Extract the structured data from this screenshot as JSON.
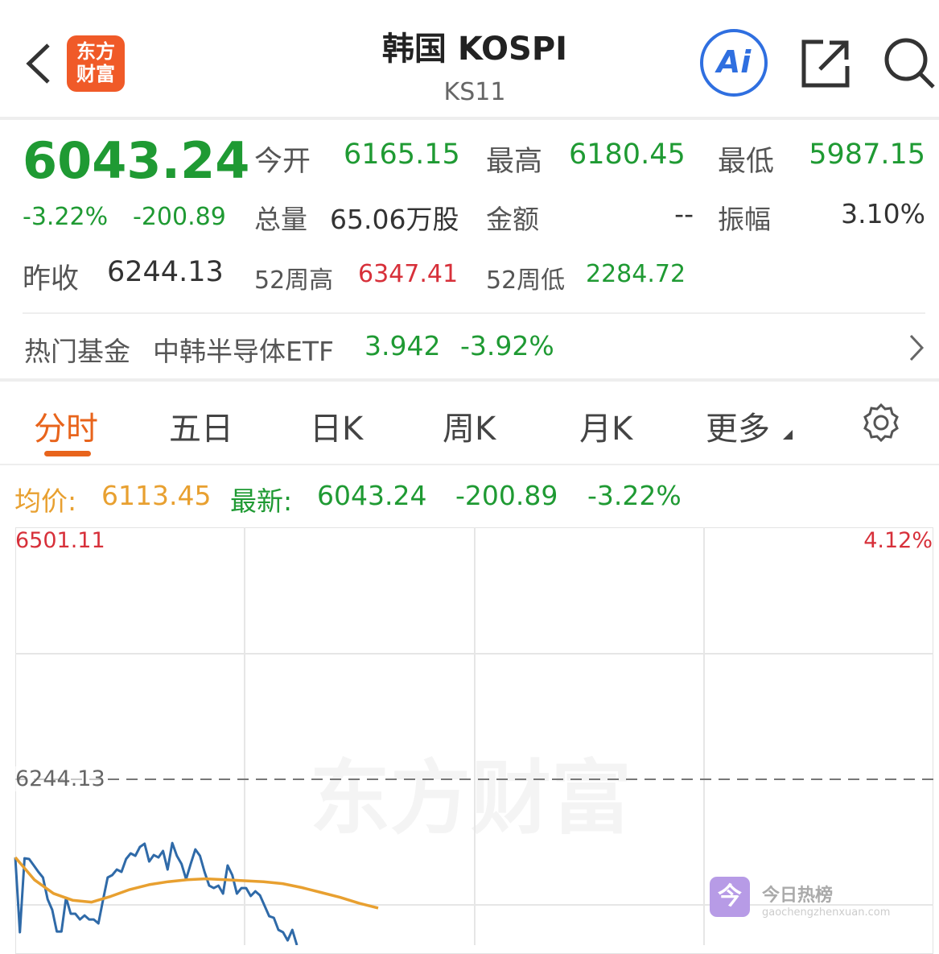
{
  "header": {
    "title": "韩国 KOSPI",
    "code": "KS11",
    "logo_text": [
      "东方",
      "财富"
    ],
    "ai_label": "Ai",
    "icons": [
      "back-chevron-icon",
      "ai-icon",
      "share-icon",
      "search-icon"
    ]
  },
  "quote": {
    "price": "6043.24",
    "change_pct": "-3.22%",
    "change": "-200.89",
    "open_label": "今开",
    "open": "6165.15",
    "high_label": "最高",
    "high": "6180.45",
    "low_label": "最低",
    "low": "5987.15",
    "volume_label": "总量",
    "volume": "65.06万股",
    "amount_label": "金额",
    "amount": "--",
    "amplitude_label": "振幅",
    "amplitude": "3.10%",
    "prev_close_label": "昨收",
    "prev_close": "6244.13",
    "w52_high_label": "52周高",
    "w52_high": "6347.41",
    "w52_low_label": "52周低",
    "w52_low": "2284.72"
  },
  "fund": {
    "label": "热门基金",
    "name": "中韩半导体ETF",
    "price": "3.942",
    "change_pct": "-3.92%"
  },
  "tabs": [
    {
      "label": "分时",
      "active": true
    },
    {
      "label": "五日"
    },
    {
      "label": "日K"
    },
    {
      "label": "周K"
    },
    {
      "label": "月K"
    },
    {
      "label": "更多"
    }
  ],
  "info": {
    "avg_label": "均价:",
    "avg": "6113.45",
    "latest_label": "最新:",
    "latest": "6043.24",
    "change": "-200.89",
    "change_pct": "-3.22%"
  },
  "colors": {
    "up": "#d7303a",
    "down": "#1f9a33",
    "avg": "#e8a030",
    "price_line": "#2f6aa8",
    "accent": "#e8641c"
  },
  "chart_data": {
    "type": "line",
    "y_top_label": "6501.11",
    "y_mid_label": "6244.13",
    "right_top_label": "4.12%",
    "ylim": [
      5987.15,
      6501.11
    ],
    "reference": 6244.13,
    "grid": true,
    "watermark": "东方财富",
    "series": [
      {
        "role": "price",
        "values": [
          6163.9,
          6087.1,
          6163.1,
          6162.3,
          6155.7,
          6149.1,
          6143.3,
          6121.0,
          6110.2,
          6087.9,
          6087.9,
          6122.6,
          6106.1,
          6106.1,
          6100.3,
          6104.4,
          6100.3,
          6100.3,
          6096.2,
          6120.1,
          6143.3,
          6145.8,
          6151.5,
          6149.1,
          6162.3,
          6168.1,
          6165.6,
          6174.7,
          6178.0,
          6159.8,
          6166.4,
          6163.9,
          6170.6,
          6151.5,
          6178.8,
          6165.6,
          6157.3,
          6141.6,
          6157.3,
          6172.2,
          6165.6,
          6149.1,
          6135.0,
          6132.5,
          6135.0,
          6126.8,
          6155.7,
          6145.8,
          6126.8,
          6132.5,
          6132.5,
          6124.3,
          6129.2,
          6125.1,
          6114.4,
          6103.6,
          6102.0,
          6089.6,
          6087.1,
          6078.8,
          6089.6,
          6073.9
        ]
      },
      {
        "role": "average",
        "values": [
          6164,
          6141,
          6127,
          6120,
          6118,
          6124,
          6131,
          6136,
          6139,
          6141,
          6142,
          6141,
          6140,
          6139,
          6137,
          6133,
          6128,
          6123,
          6117,
          6112
        ]
      }
    ]
  },
  "overlay": {
    "badge_char": "今",
    "title": "今日热榜",
    "site": "gaochengzhenxuan.com"
  }
}
